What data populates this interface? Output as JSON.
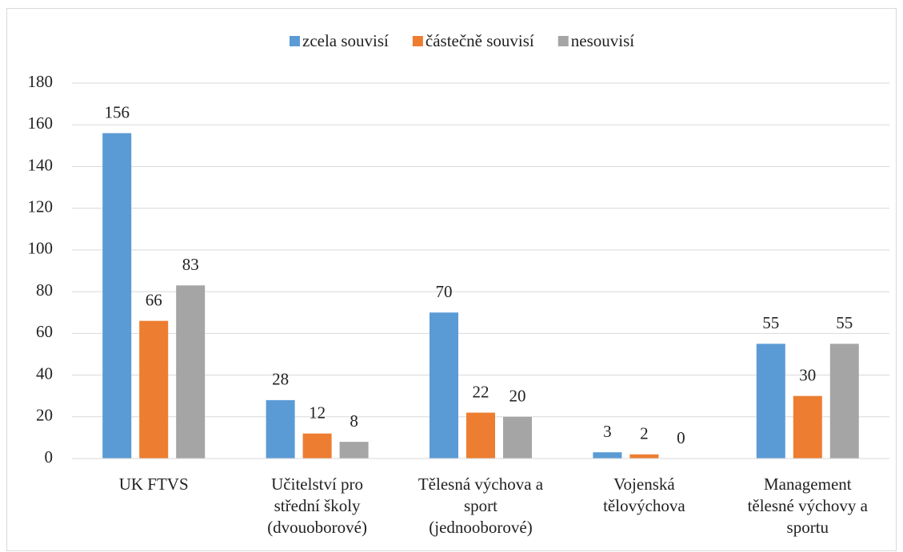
{
  "chart_data": {
    "type": "bar",
    "categories": [
      "UK FTVS",
      "Učitelství pro\nstřední školy\n(dvouoborové)",
      "Tělesná výchova a\nsport\n(jednooborové)",
      "Vojenská\ntělovýchova",
      "Management\ntělesné výchovy a\nsportu"
    ],
    "series": [
      {
        "name": "zcela souvisí",
        "color": "#5b9bd5",
        "values": [
          156,
          28,
          70,
          3,
          55
        ]
      },
      {
        "name": "částečně souvisí",
        "color": "#ed7d31",
        "values": [
          66,
          12,
          22,
          2,
          30
        ]
      },
      {
        "name": "nesouvisí",
        "color": "#a5a5a5",
        "values": [
          83,
          8,
          20,
          0,
          55
        ]
      }
    ],
    "ylim": [
      0,
      180
    ],
    "yticks": [
      0,
      20,
      40,
      60,
      80,
      100,
      120,
      140,
      160,
      180
    ],
    "grid": true,
    "legend": "top"
  }
}
